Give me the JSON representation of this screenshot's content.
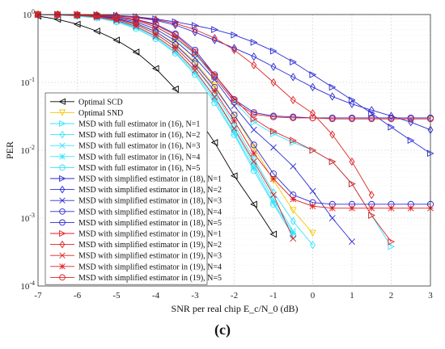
{
  "panel_label": "(c)",
  "chart_data": {
    "type": "line",
    "title": "",
    "xlabel": "SNR per real chip E_c/N_0 (dB)",
    "ylabel": "PER",
    "x_ticks": [
      -7,
      -6,
      -5,
      -4,
      -3,
      -2,
      -1,
      0,
      1,
      2,
      3
    ],
    "y_ticks": [
      "10^-4",
      "10^-3",
      "10^-2",
      "10^-1",
      "10^0"
    ],
    "xlim": [
      -7,
      3
    ],
    "ylim": [
      0.0001,
      1
    ],
    "y_scale": "log",
    "grid": true,
    "legend_position": "bottom-left",
    "series": [
      {
        "name": "Optimal SCD",
        "color": "#000000",
        "marker": "tri-left",
        "x": [
          -7,
          -6.5,
          -6,
          -5.5,
          -5,
          -4.5,
          -4,
          -3.5,
          -3,
          -2.5,
          -2,
          -1.5,
          -1
        ],
        "y": [
          0.95,
          0.85,
          0.72,
          0.57,
          0.42,
          0.28,
          0.16,
          0.08,
          0.035,
          0.013,
          0.0042,
          0.0016,
          0.00058
        ]
      },
      {
        "name": "Optimal SND",
        "color": "#f5c800",
        "marker": "tri-down",
        "x": [
          -7,
          -6.5,
          -6,
          -5.5,
          -5,
          -4.5,
          -4,
          -3.5,
          -3,
          -2.5,
          -2,
          -1.5,
          -1,
          -0.5,
          0
        ],
        "y": [
          1.0,
          0.99,
          0.97,
          0.93,
          0.85,
          0.73,
          0.56,
          0.37,
          0.2,
          0.09,
          0.033,
          0.011,
          0.0036,
          0.0013,
          0.0006
        ]
      },
      {
        "name": "MSD with full estimator in (16), N=1",
        "color": "#33e3ff",
        "marker": "tri-right",
        "x": [
          -7,
          -6.5,
          -6,
          -5.5,
          -5,
          -4.5,
          -4,
          -3.5,
          -3,
          -2.5,
          -2,
          -1.5,
          -1,
          -0.5,
          0,
          0.5,
          1,
          1.5,
          2
        ],
        "y": [
          1.0,
          1.0,
          0.99,
          0.97,
          0.92,
          0.82,
          0.66,
          0.45,
          0.26,
          0.12,
          0.052,
          0.026,
          0.0175,
          0.013,
          0.01,
          0.0068,
          0.0032,
          0.0011,
          0.00038
        ]
      },
      {
        "name": "MSD with full estimator in (16), N=2",
        "color": "#33e3ff",
        "marker": "diamond",
        "x": [
          -7,
          -6.5,
          -6,
          -5.5,
          -5,
          -4.5,
          -4,
          -3.5,
          -3,
          -2.5,
          -2,
          -1.5,
          -1,
          -0.5,
          0
        ],
        "y": [
          1.0,
          0.99,
          0.97,
          0.93,
          0.84,
          0.7,
          0.52,
          0.33,
          0.17,
          0.07,
          0.024,
          0.0075,
          0.0024,
          0.0009,
          0.0004
        ]
      },
      {
        "name": "MSD with full estimator in (16), N=3",
        "color": "#33e3ff",
        "marker": "x",
        "x": [
          -7,
          -6.5,
          -6,
          -5.5,
          -5,
          -4.5,
          -4,
          -3.5,
          -3,
          -2.5,
          -2,
          -1.5,
          -1,
          -0.5
        ],
        "y": [
          1.0,
          0.99,
          0.96,
          0.91,
          0.81,
          0.66,
          0.48,
          0.3,
          0.15,
          0.06,
          0.02,
          0.0062,
          0.0019,
          0.00065
        ]
      },
      {
        "name": "MSD with full estimator in (16), N=4",
        "color": "#33e3ff",
        "marker": "star",
        "x": [
          -7,
          -6.5,
          -6,
          -5.5,
          -5,
          -4.5,
          -4,
          -3.5,
          -3,
          -2.5,
          -2,
          -1.5,
          -1,
          -0.5
        ],
        "y": [
          1.0,
          0.98,
          0.96,
          0.9,
          0.79,
          0.64,
          0.46,
          0.28,
          0.14,
          0.055,
          0.018,
          0.0055,
          0.0017,
          0.0006
        ]
      },
      {
        "name": "MSD with full estimator in (16), N=5",
        "color": "#33e3ff",
        "marker": "circle",
        "x": [
          -7,
          -6.5,
          -6,
          -5.5,
          -5,
          -4.5,
          -4,
          -3.5,
          -3,
          -2.5,
          -2,
          -1.5,
          -1,
          -0.5
        ],
        "y": [
          1.0,
          0.98,
          0.95,
          0.89,
          0.78,
          0.62,
          0.44,
          0.27,
          0.13,
          0.05,
          0.017,
          0.005,
          0.0016,
          0.00055
        ]
      },
      {
        "name": "MSD with simplified estimator in (18), N=1",
        "color": "#2a2ad6",
        "marker": "tri-right",
        "x": [
          -7,
          -6.5,
          -6,
          -5.5,
          -5,
          -4.5,
          -4,
          -3.5,
          -3,
          -2.5,
          -2,
          -1.5,
          -1,
          -0.5,
          0,
          0.5,
          1,
          1.5,
          2,
          2.5,
          3
        ],
        "y": [
          1.0,
          1.0,
          1.0,
          0.99,
          0.97,
          0.93,
          0.86,
          0.78,
          0.69,
          0.6,
          0.5,
          0.39,
          0.29,
          0.2,
          0.13,
          0.085,
          0.055,
          0.035,
          0.022,
          0.014,
          0.009
        ]
      },
      {
        "name": "MSD with simplified estimator in (18), N=2",
        "color": "#2a2ad6",
        "marker": "diamond",
        "x": [
          -7,
          -6.5,
          -6,
          -5.5,
          -5,
          -4.5,
          -4,
          -3.5,
          -3,
          -2.5,
          -2,
          -1.5,
          -1,
          -0.5,
          0,
          0.5,
          1,
          1.5,
          2,
          2.5,
          3
        ],
        "y": [
          1.0,
          1.0,
          0.99,
          0.98,
          0.95,
          0.9,
          0.82,
          0.7,
          0.55,
          0.42,
          0.32,
          0.24,
          0.17,
          0.12,
          0.085,
          0.062,
          0.048,
          0.039,
          0.032,
          0.026,
          0.02
        ]
      },
      {
        "name": "MSD with simplified estimator in (18), N=3",
        "color": "#2a2ad6",
        "marker": "x",
        "x": [
          -7,
          -6.5,
          -6,
          -5.5,
          -5,
          -4.5,
          -4,
          -3.5,
          -3,
          -2.5,
          -2,
          -1.5,
          -1,
          -0.5,
          0,
          0.5,
          1
        ],
        "y": [
          1.0,
          1.0,
          0.99,
          0.96,
          0.89,
          0.78,
          0.61,
          0.41,
          0.23,
          0.11,
          0.045,
          0.02,
          0.011,
          0.0058,
          0.0025,
          0.001,
          0.00045
        ]
      },
      {
        "name": "MSD with simplified estimator in (18), N=4",
        "color": "#2a2ad6",
        "marker": "circle",
        "x": [
          -7,
          -6.5,
          -6,
          -5.5,
          -5,
          -4.5,
          -4,
          -3.5,
          -3,
          -2.5,
          -2,
          -1.5,
          -1,
          -0.5,
          0,
          0.5,
          1,
          1.5,
          2,
          2.5,
          3
        ],
        "y": [
          1.0,
          1.0,
          0.98,
          0.95,
          0.87,
          0.74,
          0.56,
          0.36,
          0.19,
          0.085,
          0.033,
          0.012,
          0.0045,
          0.0022,
          0.0017,
          0.0016,
          0.0016,
          0.0016,
          0.0016,
          0.0016,
          0.0016
        ]
      },
      {
        "name": "MSD with simplified estimator in (18), N=5",
        "color": "#2a2ad6",
        "marker": "circle",
        "x": [
          -7,
          -6.5,
          -6,
          -5.5,
          -5,
          -4.5,
          -4,
          -3.5,
          -3,
          -2.5,
          -2,
          -1.5,
          -1,
          -0.5,
          0,
          0.5,
          1,
          1.5,
          2,
          2.5,
          3
        ],
        "y": [
          1.0,
          1.0,
          0.99,
          0.97,
          0.93,
          0.85,
          0.72,
          0.52,
          0.3,
          0.13,
          0.056,
          0.036,
          0.032,
          0.031,
          0.03,
          0.03,
          0.03,
          0.03,
          0.03,
          0.03,
          0.03
        ]
      },
      {
        "name": "MSD with simplified estimator in (19), N=1",
        "color": "#e02020",
        "marker": "tri-right",
        "x": [
          -7,
          -6.5,
          -6,
          -5.5,
          -5,
          -4.5,
          -4,
          -3.5,
          -3,
          -2.5,
          -2,
          -1.5,
          -1,
          -0.5,
          0,
          0.5,
          1,
          1.5,
          2
        ],
        "y": [
          1.0,
          1.0,
          0.99,
          0.97,
          0.92,
          0.82,
          0.66,
          0.46,
          0.27,
          0.13,
          0.058,
          0.029,
          0.019,
          0.014,
          0.01,
          0.0068,
          0.0032,
          0.0011,
          0.00045
        ]
      },
      {
        "name": "MSD with simplified estimator in (19), N=2",
        "color": "#e02020",
        "marker": "diamond",
        "x": [
          -7,
          -6.5,
          -6,
          -5.5,
          -5,
          -4.5,
          -4,
          -3.5,
          -3,
          -2.5,
          -2,
          -1.5,
          -1,
          -0.5,
          0,
          0.5,
          1,
          1.5
        ],
        "y": [
          1.0,
          1.0,
          0.99,
          0.98,
          0.96,
          0.91,
          0.84,
          0.74,
          0.6,
          0.45,
          0.3,
          0.18,
          0.1,
          0.055,
          0.035,
          0.017,
          0.0068,
          0.0022
        ]
      },
      {
        "name": "MSD with simplified estimator in (19), N=3",
        "color": "#e02020",
        "marker": "x",
        "x": [
          -7,
          -6.5,
          -6,
          -5.5,
          -5,
          -4.5,
          -4,
          -3.5,
          -3,
          -2.5,
          -2,
          -1.5,
          -1,
          -0.5
        ],
        "y": [
          1.0,
          0.99,
          0.97,
          0.92,
          0.82,
          0.67,
          0.48,
          0.3,
          0.15,
          0.061,
          0.021,
          0.0068,
          0.0022,
          0.0005
        ]
      },
      {
        "name": "MSD with simplified estimator in (19), N=4",
        "color": "#e02020",
        "marker": "star",
        "x": [
          -7,
          -6.5,
          -6,
          -5.5,
          -5,
          -4.5,
          -4,
          -3.5,
          -3,
          -2.5,
          -2,
          -1.5,
          -1,
          -0.5,
          0,
          0.5,
          1,
          1.5,
          2,
          2.5,
          3
        ],
        "y": [
          1.0,
          1.0,
          0.98,
          0.94,
          0.85,
          0.71,
          0.52,
          0.33,
          0.17,
          0.075,
          0.027,
          0.009,
          0.0038,
          0.0019,
          0.0015,
          0.0014,
          0.0014,
          0.0014,
          0.0014,
          0.0014,
          0.0014
        ]
      },
      {
        "name": "MSD with simplified estimator in (19), N=5",
        "color": "#e02020",
        "marker": "circle",
        "x": [
          -7,
          -6.5,
          -6,
          -5.5,
          -5,
          -4.5,
          -4,
          -3.5,
          -3,
          -2.5,
          -2,
          -1.5,
          -1,
          -0.5,
          0,
          0.5,
          1,
          1.5,
          2,
          2.5,
          3
        ],
        "y": [
          1.0,
          1.0,
          0.99,
          0.97,
          0.92,
          0.84,
          0.7,
          0.5,
          0.28,
          0.12,
          0.052,
          0.034,
          0.031,
          0.03,
          0.03,
          0.029,
          0.029,
          0.029,
          0.029,
          0.029,
          0.029
        ]
      }
    ]
  }
}
